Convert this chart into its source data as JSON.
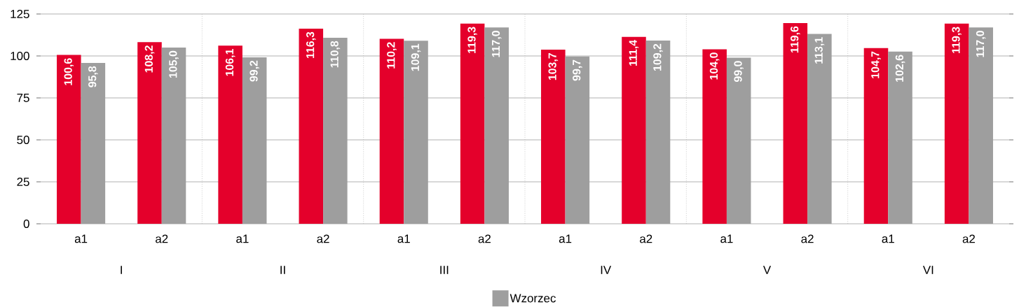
{
  "chart_data": {
    "type": "bar",
    "categories": [
      "a1",
      "a2",
      "a1",
      "a2",
      "a1",
      "a2",
      "a1",
      "a2",
      "a1",
      "a2",
      "a1",
      "a2"
    ],
    "annotations": [
      "I",
      "II",
      "III",
      "IV",
      "V",
      "VI"
    ],
    "series": [
      {
        "color": "#e4002b",
        "values": [
          100.6,
          108.2,
          106.1,
          116.3,
          110.2,
          119.3,
          103.7,
          111.4,
          104.0,
          119.6,
          104.7,
          119.3
        ],
        "value_labels": [
          "100,6",
          "108,2",
          "106,1",
          "116,3",
          "110,2",
          "119,3",
          "103,7",
          "111,4",
          "104,0",
          "119,6",
          "104,7",
          "119,3"
        ]
      },
      {
        "name": "Wzorzec",
        "color": "#9e9e9e",
        "values": [
          95.8,
          105.0,
          99.2,
          110.8,
          109.1,
          117.0,
          99.7,
          109.2,
          99.0,
          113.1,
          102.6,
          117.0
        ],
        "value_labels": [
          "95,8",
          "105,0",
          "99,2",
          "110,8",
          "109,1",
          "117,0",
          "99,7",
          "109,2",
          "99,0",
          "113,1",
          "102,6",
          "117,0"
        ]
      }
    ],
    "ylim": [
      0,
      125
    ],
    "yticks": [
      0,
      25,
      50,
      75,
      100,
      125
    ],
    "grid": "y",
    "legend": "bottom"
  }
}
